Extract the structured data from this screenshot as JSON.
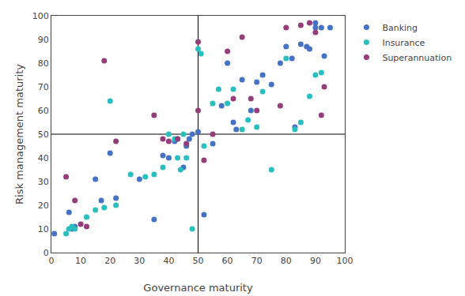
{
  "chart_data": {
    "type": "scatter",
    "xlabel": "Governance maturity",
    "ylabel": "Risk management maturity",
    "series": [
      {
        "name": "Banking",
        "color": "#4472C4",
        "x": [
          1,
          6,
          7,
          8,
          15,
          17,
          20,
          22,
          30,
          35,
          38,
          40,
          42,
          43,
          45,
          46,
          47,
          48,
          50,
          52,
          55,
          58,
          60,
          62,
          63,
          65,
          68,
          70,
          72,
          75,
          78,
          80,
          82,
          83,
          85,
          87,
          88,
          90,
          90,
          92,
          93,
          95
        ],
        "values": [
          8,
          17,
          10,
          11,
          31,
          22,
          42,
          23,
          31,
          14,
          41,
          40,
          47,
          48,
          36,
          45,
          48,
          50,
          51,
          16,
          46,
          62,
          80,
          55,
          52,
          73,
          60,
          72,
          75,
          71,
          80,
          87,
          82,
          53,
          88,
          87,
          86,
          97,
          95,
          95,
          83,
          95
        ]
      },
      {
        "name": "Insurance",
        "color": "#2ABFBF",
        "x": [
          5,
          6,
          7,
          8,
          12,
          15,
          18,
          20,
          22,
          27,
          32,
          35,
          38,
          40,
          42,
          43,
          44,
          45,
          46,
          48,
          50,
          51,
          52,
          55,
          57,
          60,
          62,
          65,
          67,
          70,
          72,
          75,
          80,
          83,
          85,
          88,
          90,
          92
        ],
        "values": [
          8,
          10,
          11,
          10,
          15,
          18,
          19,
          64,
          20,
          33,
          32,
          33,
          36,
          50,
          48,
          40,
          35,
          50,
          40,
          10,
          86,
          84,
          45,
          63,
          69,
          63,
          69,
          52,
          56,
          53,
          68,
          35,
          82,
          52,
          55,
          66,
          75,
          76
        ]
      },
      {
        "name": "Superannuation",
        "color": "#943D7A",
        "x": [
          5,
          8,
          10,
          12,
          18,
          22,
          35,
          38,
          40,
          43,
          46,
          50,
          50,
          52,
          55,
          60,
          62,
          65,
          68,
          70,
          78,
          80,
          85,
          88,
          90,
          92,
          93
        ],
        "values": [
          32,
          22,
          12,
          11,
          81,
          47,
          58,
          48,
          47,
          48,
          46,
          89,
          60,
          39,
          50,
          85,
          65,
          91,
          65,
          60,
          62,
          95,
          96,
          97,
          93,
          58,
          70
        ]
      }
    ],
    "vline": 50,
    "hline": 50,
    "xlim": [
      0,
      100
    ],
    "ylim": [
      0,
      100
    ],
    "xticks": [
      0,
      10,
      20,
      30,
      40,
      50,
      60,
      70,
      80,
      90,
      100
    ],
    "yticks": [
      0,
      10,
      20,
      30,
      40,
      50,
      60,
      70,
      80,
      90,
      100
    ],
    "grid": false,
    "legend": "right"
  }
}
